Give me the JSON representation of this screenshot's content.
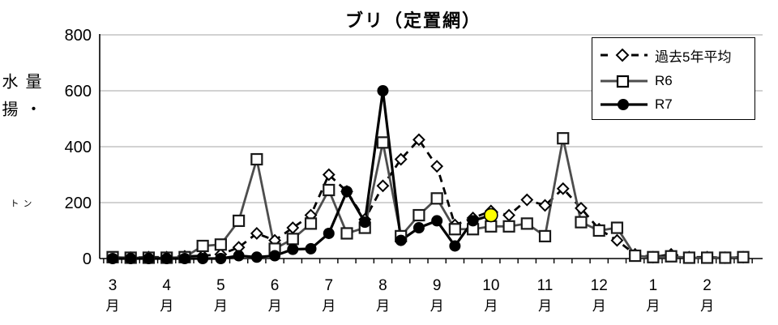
{
  "chart_data": {
    "type": "line",
    "title": "ブリ（定置網）",
    "ylabel_main": "水揚量・",
    "ylabel_unit": "トン",
    "ylim": [
      0,
      800
    ],
    "yticks": [
      800,
      600,
      400,
      200,
      0
    ],
    "grid": true,
    "legend_position": "top-right",
    "months": [
      "3",
      "4",
      "5",
      "6",
      "7",
      "8",
      "9",
      "10",
      "11",
      "12",
      "1",
      "2"
    ],
    "month_suffix": "月",
    "points_per_month": 3,
    "series": [
      {
        "name": "過去5年平均",
        "line": "dashed",
        "marker": "diamond",
        "color": "#000000",
        "values": [
          3,
          3,
          5,
          5,
          8,
          10,
          15,
          40,
          90,
          65,
          110,
          155,
          300,
          240,
          140,
          260,
          355,
          425,
          330,
          120,
          145,
          170,
          155,
          210,
          190,
          250,
          180,
          105,
          65,
          15,
          5,
          15,
          5,
          5,
          3,
          5
        ]
      },
      {
        "name": "R6",
        "line": "solid",
        "marker": "square",
        "color": "#4d4d4d",
        "values": [
          5,
          3,
          3,
          3,
          5,
          45,
          50,
          135,
          355,
          35,
          70,
          125,
          245,
          90,
          110,
          415,
          80,
          155,
          215,
          105,
          105,
          115,
          115,
          125,
          80,
          430,
          130,
          100,
          110,
          10,
          5,
          8,
          3,
          3,
          3,
          5
        ]
      },
      {
        "name": "R7",
        "line": "solid",
        "marker": "circle",
        "color": "#000000",
        "values": [
          0,
          0,
          0,
          0,
          0,
          0,
          0,
          10,
          5,
          10,
          33,
          35,
          90,
          240,
          130,
          600,
          65,
          110,
          135,
          45,
          135,
          155
        ]
      }
    ],
    "highlight": {
      "series_index": 2,
      "point_index": 21,
      "color": "#ffff00"
    }
  }
}
